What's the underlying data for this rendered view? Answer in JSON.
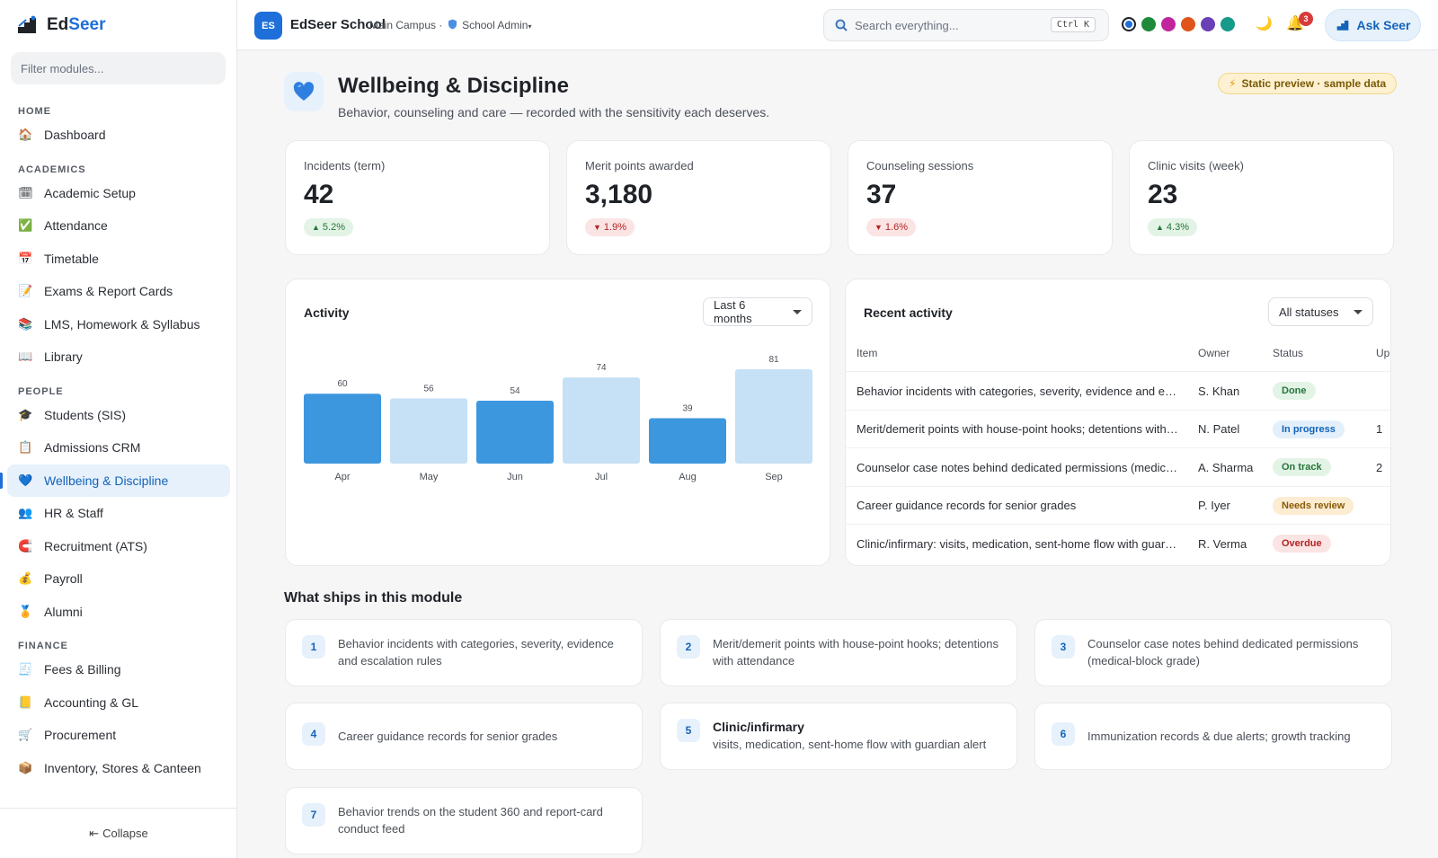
{
  "brand": {
    "name_part1": "Ed",
    "name_part2": "Seer"
  },
  "sidebar": {
    "filter_placeholder": "Filter modules...",
    "collapse_label": "Collapse",
    "sections": [
      {
        "title": "HOME",
        "items": [
          {
            "label": "Dashboard",
            "icon": "house-icon"
          }
        ]
      },
      {
        "title": "ACADEMICS",
        "items": [
          {
            "label": "Academic Setup",
            "icon": "calendar-icon"
          },
          {
            "label": "Attendance",
            "icon": "checkbox-icon"
          },
          {
            "label": "Timetable",
            "icon": "grid-calendar-icon"
          },
          {
            "label": "Exams & Report Cards",
            "icon": "report-icon"
          },
          {
            "label": "LMS, Homework & Syllabus",
            "icon": "books-icon"
          },
          {
            "label": "Library",
            "icon": "open-book-icon"
          }
        ]
      },
      {
        "title": "PEOPLE",
        "items": [
          {
            "label": "Students (SIS)",
            "icon": "graduation-cap-icon"
          },
          {
            "label": "Admissions CRM",
            "icon": "clipboard-icon"
          },
          {
            "label": "Wellbeing & Discipline",
            "icon": "heart-icon",
            "active": true
          },
          {
            "label": "HR & Staff",
            "icon": "people-icon"
          },
          {
            "label": "Recruitment (ATS)",
            "icon": "magnet-icon"
          },
          {
            "label": "Payroll",
            "icon": "money-bag-icon"
          },
          {
            "label": "Alumni",
            "icon": "medal-icon"
          }
        ]
      },
      {
        "title": "FINANCE",
        "items": [
          {
            "label": "Fees & Billing",
            "icon": "receipt-icon"
          },
          {
            "label": "Accounting & GL",
            "icon": "ledger-icon"
          },
          {
            "label": "Procurement",
            "icon": "cart-icon"
          },
          {
            "label": "Inventory, Stores & Canteen",
            "icon": "box-icon"
          }
        ]
      }
    ]
  },
  "topbar": {
    "badge": "ES",
    "school_name": "EdSeer School",
    "campus": "Main Campus",
    "separator": "·",
    "role": "School Admin",
    "role_suffix": "▾",
    "search_placeholder": "Search everything...",
    "search_shortcut": "Ctrl K",
    "theme_colors": [
      "#1e6fd9",
      "#1f8a3b",
      "#c0259e",
      "#e0541a",
      "#6b3fb5",
      "#169a8a"
    ],
    "notification_count": "3",
    "ask_label": "Ask Seer"
  },
  "page": {
    "title": "Wellbeing & Discipline",
    "subtitle": "Behavior, counseling and care — recorded with the sensitivity each deserves.",
    "preview_badge": "Static preview · sample data"
  },
  "stats": [
    {
      "label": "Incidents (term)",
      "value": "42",
      "delta": "5.2%",
      "direction": "up"
    },
    {
      "label": "Merit points awarded",
      "value": "3,180",
      "delta": "1.9%",
      "direction": "down"
    },
    {
      "label": "Counseling sessions",
      "value": "37",
      "delta": "1.6%",
      "direction": "down"
    },
    {
      "label": "Clinic visits (week)",
      "value": "23",
      "delta": "4.3%",
      "direction": "up"
    }
  ],
  "activity": {
    "title": "Activity",
    "range": "Last 6 months",
    "colors": {
      "dark": "#3d97df",
      "light": "#c6e0f5"
    }
  },
  "chart_data": {
    "type": "bar",
    "categories": [
      "Apr",
      "May",
      "Jun",
      "Jul",
      "Aug",
      "Sep"
    ],
    "values": [
      60,
      56,
      54,
      74,
      39,
      81
    ],
    "title": "Activity",
    "ylim": [
      0,
      81
    ],
    "grid": false
  },
  "recent": {
    "title": "Recent activity",
    "filter": "All statuses",
    "columns": [
      "Item",
      "Owner",
      "Status",
      "Up"
    ],
    "rows": [
      {
        "item": "Behavior incidents with categories, severity, evidence and escalation rules",
        "owner": "S. Khan",
        "status": "Done",
        "status_color": "green",
        "updated": ""
      },
      {
        "item": "Merit/demerit points with house-point hooks; detentions with attendance",
        "owner": "N. Patel",
        "status": "In progress",
        "status_color": "blue",
        "updated": "1"
      },
      {
        "item": "Counselor case notes behind dedicated permissions (medical-block grade)",
        "owner": "A. Sharma",
        "status": "On track",
        "status_color": "green",
        "updated": "2"
      },
      {
        "item": "Career guidance records for senior grades",
        "owner": "P. Iyer",
        "status": "Needs review",
        "status_color": "amber",
        "updated": ""
      },
      {
        "item": "Clinic/infirmary: visits, medication, sent-home flow with guardian alert",
        "owner": "R. Verma",
        "status": "Overdue",
        "status_color": "red",
        "updated": ""
      }
    ]
  },
  "features": {
    "title": "What ships in this module",
    "items": [
      {
        "num": "1",
        "heading": "",
        "text": "Behavior incidents with categories, severity, evidence and escalation rules"
      },
      {
        "num": "2",
        "heading": "",
        "text": "Merit/demerit points with house-point hooks; detentions with attendance"
      },
      {
        "num": "3",
        "heading": "",
        "text": "Counselor case notes behind dedicated permissions (medical-block grade)"
      },
      {
        "num": "4",
        "heading": "",
        "text": "Career guidance records for senior grades"
      },
      {
        "num": "5",
        "heading": "Clinic/infirmary",
        "text": "visits, medication, sent-home flow with guardian alert"
      },
      {
        "num": "6",
        "heading": "",
        "text": "Immunization records & due alerts; growth tracking"
      },
      {
        "num": "7",
        "heading": "",
        "text": "Behavior trends on the student 360 and report-card conduct feed"
      }
    ]
  }
}
